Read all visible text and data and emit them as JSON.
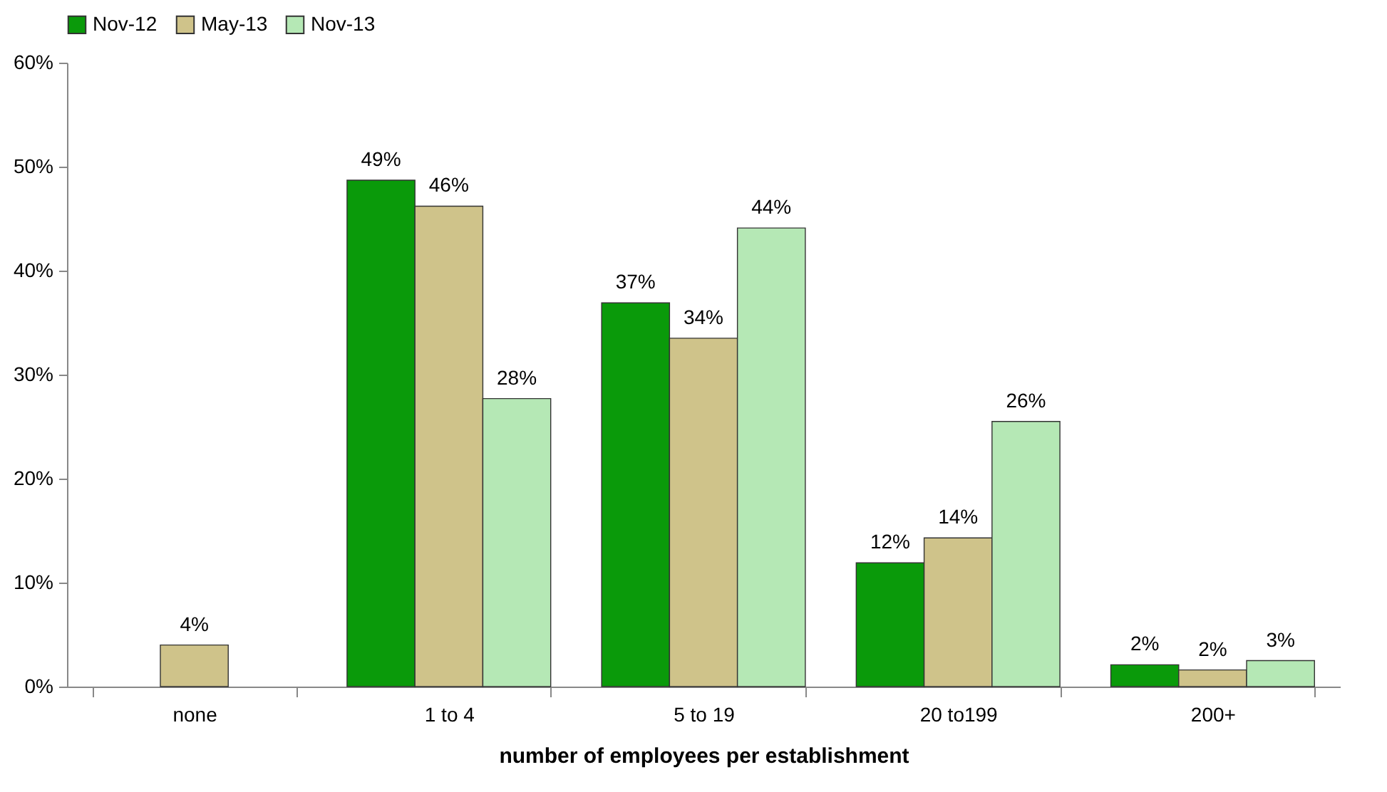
{
  "chart_data": {
    "type": "bar",
    "xlabel": "number of employees per establishment",
    "categories": [
      "none",
      "1 to 4",
      "5 to 19",
      "20 to199",
      "200+"
    ],
    "series": [
      {
        "name": "Nov-12",
        "color": "#0a9a0a",
        "values": [
          null,
          48.7,
          36.9,
          11.9,
          2.1
        ],
        "value_labels": [
          null,
          "49%",
          "37%",
          "12%",
          "2%"
        ]
      },
      {
        "name": "May-13",
        "color": "#cfc38a",
        "values": [
          4.0,
          46.2,
          33.5,
          14.3,
          1.6
        ],
        "value_labels": [
          "4%",
          "46%",
          "34%",
          "14%",
          "2%"
        ]
      },
      {
        "name": "Nov-13",
        "color": "#b5e8b5",
        "values": [
          null,
          27.7,
          44.1,
          25.5,
          2.5
        ],
        "value_labels": [
          null,
          "28%",
          "44%",
          "26%",
          "3%"
        ]
      }
    ],
    "ylim": [
      0,
      60
    ],
    "yticks": [
      {
        "value": 0,
        "label": "0%"
      },
      {
        "value": 10,
        "label": "10%"
      },
      {
        "value": 20,
        "label": "20%"
      },
      {
        "value": 30,
        "label": "30%"
      },
      {
        "value": 40,
        "label": "40%"
      },
      {
        "value": 50,
        "label": "50%"
      },
      {
        "value": 60,
        "label": "60%"
      }
    ],
    "legend": "top",
    "grid": false
  }
}
